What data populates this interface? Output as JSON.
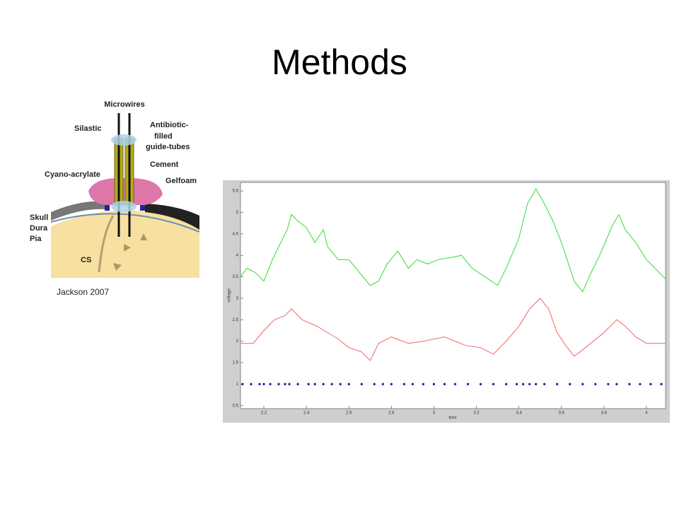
{
  "title": "Methods",
  "diagram": {
    "labels": [
      "Microwires",
      "Silastic",
      "Antibiotic-",
      "filled",
      "guide-tubes",
      "Cement",
      "Gelfoam",
      "Cyano-acrylate",
      "Skull",
      "Dura",
      "Pia",
      "CS"
    ]
  },
  "caption": "Jackson 2007",
  "chart_data": {
    "type": "line",
    "xlabel": "time",
    "ylabel": "voltage",
    "xlim": [
      2.09,
      4.09
    ],
    "ylim": [
      0.43,
      5.7
    ],
    "xticks": [
      2.2,
      2.4,
      2.6,
      2.8,
      3,
      3.2,
      3.4,
      3.6,
      3.8,
      4
    ],
    "yticks": [
      0.5,
      1,
      1.5,
      2,
      2.5,
      3,
      3.5,
      4,
      4.5,
      5,
      5.5
    ],
    "series": [
      {
        "color": "#33dd33",
        "marker": "line",
        "x": [
          2.09,
          2.12,
          2.16,
          2.2,
          2.24,
          2.28,
          2.31,
          2.33,
          2.36,
          2.4,
          2.44,
          2.48,
          2.5,
          2.55,
          2.6,
          2.65,
          2.7,
          2.74,
          2.78,
          2.83,
          2.88,
          2.92,
          2.97,
          3.02,
          3.08,
          3.13,
          3.18,
          3.24,
          3.3,
          3.34,
          3.4,
          3.44,
          3.48,
          3.52,
          3.56,
          3.6,
          3.66,
          3.7,
          3.74,
          3.78,
          3.84,
          3.87,
          3.9,
          3.95,
          4.0,
          4.04,
          4.09
        ],
        "values": [
          3.5,
          3.7,
          3.6,
          3.4,
          3.9,
          4.3,
          4.6,
          4.95,
          4.8,
          4.65,
          4.3,
          4.6,
          4.2,
          3.9,
          3.9,
          3.6,
          3.3,
          3.4,
          3.8,
          4.1,
          3.7,
          3.9,
          3.8,
          3.9,
          3.95,
          4.0,
          3.7,
          3.5,
          3.3,
          3.7,
          4.4,
          5.2,
          5.55,
          5.2,
          4.8,
          4.3,
          3.4,
          3.15,
          3.6,
          4.0,
          4.7,
          4.95,
          4.6,
          4.3,
          3.9,
          3.7,
          3.45
        ]
      },
      {
        "color": "#ee6666",
        "marker": "line",
        "x": [
          2.09,
          2.15,
          2.2,
          2.25,
          2.3,
          2.33,
          2.38,
          2.45,
          2.5,
          2.55,
          2.6,
          2.66,
          2.7,
          2.74,
          2.8,
          2.88,
          2.95,
          3.05,
          3.15,
          3.22,
          3.28,
          3.34,
          3.4,
          3.45,
          3.5,
          3.54,
          3.58,
          3.62,
          3.66,
          3.7,
          3.75,
          3.8,
          3.86,
          3.9,
          3.95,
          4.0,
          4.09
        ],
        "values": [
          1.95,
          1.95,
          2.25,
          2.5,
          2.6,
          2.75,
          2.5,
          2.35,
          2.2,
          2.05,
          1.85,
          1.75,
          1.55,
          1.95,
          2.1,
          1.95,
          2.0,
          2.1,
          1.9,
          1.85,
          1.7,
          2.0,
          2.35,
          2.75,
          3.0,
          2.75,
          2.2,
          1.9,
          1.65,
          1.8,
          2.0,
          2.2,
          2.5,
          2.35,
          2.1,
          1.95,
          1.95
        ]
      },
      {
        "color": "#1a1aaa",
        "marker": "dot",
        "x": [
          2.1,
          2.14,
          2.18,
          2.2,
          2.23,
          2.27,
          2.3,
          2.32,
          2.36,
          2.41,
          2.44,
          2.48,
          2.52,
          2.56,
          2.6,
          2.66,
          2.72,
          2.76,
          2.8,
          2.86,
          2.9,
          2.95,
          3.0,
          3.05,
          3.1,
          3.16,
          3.22,
          3.28,
          3.34,
          3.39,
          3.42,
          3.45,
          3.48,
          3.52,
          3.58,
          3.64,
          3.7,
          3.76,
          3.82,
          3.86,
          3.92,
          3.97,
          4.02,
          4.07
        ],
        "values": [
          1,
          1,
          1,
          1,
          1,
          1,
          1,
          1,
          1,
          1,
          1,
          1,
          1,
          1,
          1,
          1,
          1,
          1,
          1,
          1,
          1,
          1,
          1,
          1,
          1,
          1,
          1,
          1,
          1,
          1,
          1,
          1,
          1,
          1,
          1,
          1,
          1,
          1,
          1,
          1,
          1,
          1,
          1,
          1
        ]
      }
    ]
  }
}
